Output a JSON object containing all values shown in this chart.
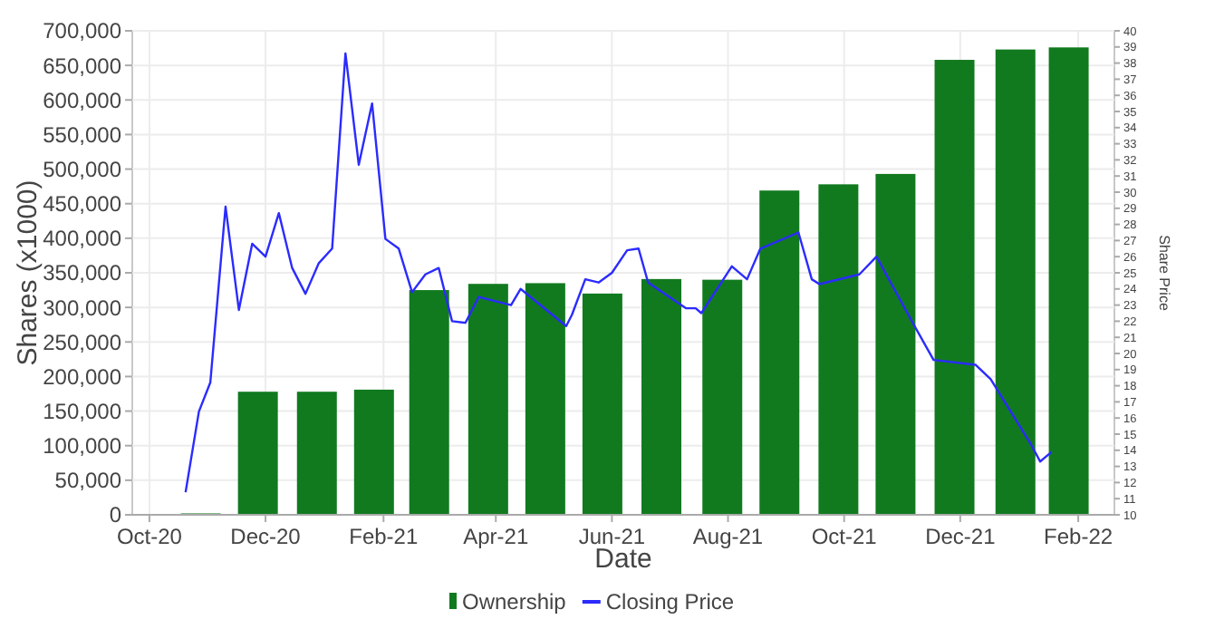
{
  "chart_data": {
    "type": "bar",
    "xlabel": "Date",
    "ylabel": "Shares (x1000)",
    "y2label": "Share Price",
    "xlim": [
      "2020-09-22",
      "2022-02-20"
    ],
    "xticks": [
      {
        "value": "2020-10-01",
        "label": "Oct-20"
      },
      {
        "value": "2020-12-01",
        "label": "Dec-20"
      },
      {
        "value": "2021-02-01",
        "label": "Feb-21"
      },
      {
        "value": "2021-04-01",
        "label": "Apr-21"
      },
      {
        "value": "2021-06-01",
        "label": "Jun-21"
      },
      {
        "value": "2021-08-01",
        "label": "Aug-21"
      },
      {
        "value": "2021-10-01",
        "label": "Oct-21"
      },
      {
        "value": "2021-12-01",
        "label": "Dec-21"
      },
      {
        "value": "2022-02-01",
        "label": "Feb-22"
      }
    ],
    "ylim": [
      0,
      700000
    ],
    "yticks": [
      {
        "value": 0,
        "label": "0"
      },
      {
        "value": 50000,
        "label": "50,000"
      },
      {
        "value": 100000,
        "label": "100,000"
      },
      {
        "value": 150000,
        "label": "150,000"
      },
      {
        "value": 200000,
        "label": "200,000"
      },
      {
        "value": 250000,
        "label": "250,000"
      },
      {
        "value": 300000,
        "label": "300,000"
      },
      {
        "value": 350000,
        "label": "350,000"
      },
      {
        "value": 400000,
        "label": "400,000"
      },
      {
        "value": 450000,
        "label": "450,000"
      },
      {
        "value": 500000,
        "label": "500,000"
      },
      {
        "value": 550000,
        "label": "550,000"
      },
      {
        "value": 600000,
        "label": "600,000"
      },
      {
        "value": 650000,
        "label": "650,000"
      },
      {
        "value": 700000,
        "label": "700,000"
      }
    ],
    "y2lim": [
      10,
      40
    ],
    "y2ticks": [
      10,
      11,
      12,
      13,
      14,
      15,
      16,
      17,
      18,
      19,
      20,
      21,
      22,
      23,
      24,
      25,
      26,
      27,
      28,
      29,
      30,
      31,
      32,
      33,
      34,
      35,
      36,
      37,
      38,
      39,
      40
    ],
    "grid": true,
    "legend": "bottom",
    "series": [
      {
        "name": "Ownership",
        "color": "#117a1f",
        "x": [
          "2020-10-28",
          "2020-11-27",
          "2020-12-28",
          "2021-01-27",
          "2021-02-25",
          "2021-03-28",
          "2021-04-27",
          "2021-05-27",
          "2021-06-27",
          "2021-07-29",
          "2021-08-28",
          "2021-09-28",
          "2021-10-28",
          "2021-11-28",
          "2021-12-30",
          "2022-01-27"
        ],
        "values": [
          2000,
          178000,
          178000,
          181000,
          325000,
          334000,
          335000,
          320000,
          341000,
          340000,
          469000,
          478000,
          493000,
          658000,
          673000,
          676000
        ]
      },
      {
        "name": "Closing Price",
        "type": "line",
        "axis": "y2",
        "color": "#2b2bff",
        "marker": "none",
        "x": [
          "2020-10-20",
          "2020-10-27",
          "2020-11-02",
          "2020-11-10",
          "2020-11-17",
          "2020-11-24",
          "2020-12-01",
          "2020-12-08",
          "2020-12-15",
          "2020-12-22",
          "2020-12-29",
          "2021-01-05",
          "2021-01-12",
          "2021-01-19",
          "2021-01-26",
          "2021-02-02",
          "2021-02-09",
          "2021-02-16",
          "2021-02-23",
          "2021-03-02",
          "2021-03-09",
          "2021-03-16",
          "2021-03-23",
          "2021-04-09",
          "2021-04-14",
          "2021-05-08",
          "2021-05-11",
          "2021-05-18",
          "2021-05-25",
          "2021-06-01",
          "2021-06-09",
          "2021-06-15",
          "2021-06-20",
          "2021-07-10",
          "2021-07-15",
          "2021-07-18",
          "2021-08-03",
          "2021-08-11",
          "2021-08-18",
          "2021-09-07",
          "2021-09-14",
          "2021-09-18",
          "2021-10-09",
          "2021-10-18",
          "2021-11-07",
          "2021-11-17",
          "2021-12-09",
          "2021-12-17",
          "2022-01-07",
          "2022-01-12",
          "2022-01-18"
        ],
        "values": [
          11.4,
          16.4,
          18.2,
          29.1,
          22.7,
          26.8,
          26.0,
          28.7,
          25.3,
          23.7,
          25.6,
          26.5,
          38.6,
          31.7,
          35.5,
          27.1,
          26.5,
          23.8,
          24.9,
          25.3,
          22.0,
          21.9,
          23.5,
          23.0,
          24.0,
          21.7,
          22.4,
          24.6,
          24.4,
          25.0,
          26.4,
          26.5,
          24.4,
          22.8,
          22.8,
          22.5,
          25.4,
          24.6,
          26.5,
          27.5,
          24.6,
          24.3,
          24.9,
          26.0,
          21.7,
          19.6,
          19.3,
          18.4,
          14.4,
          13.3,
          13.9
        ]
      }
    ]
  }
}
